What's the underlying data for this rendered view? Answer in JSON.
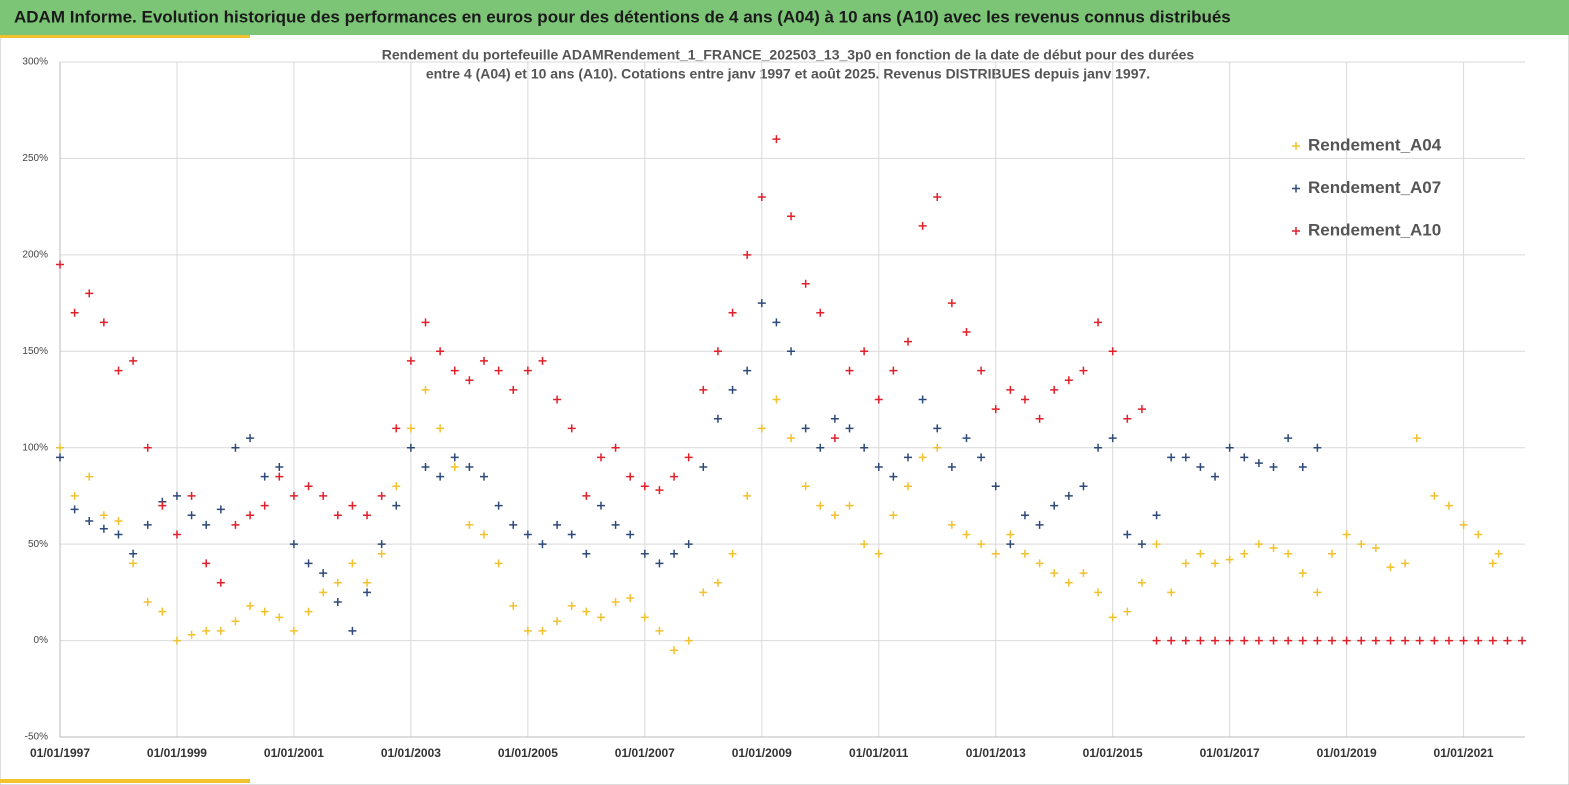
{
  "header": {
    "title": "ADAM Informe. Evolution historique des performances en euros pour des détentions de 4 ans (A04) à 10 ans (A10) avec les revenus connus distribués"
  },
  "chart_data": {
    "type": "scatter",
    "title_lines": [
      "Rendement du portefeuille ADAMRendement_1_FRANCE_202503_13_3p0  en fonction de la date de début pour des durées",
      "entre 4 (A04) et 10 ans (A10). Cotations entre janv 1997 et août 2025. Revenus DISTRIBUES depuis janv 1997."
    ],
    "xlim": [
      1997,
      2022.05
    ],
    "xticks": [
      {
        "value": 1997,
        "label": "01/01/1997"
      },
      {
        "value": 1999,
        "label": "01/01/1999"
      },
      {
        "value": 2001,
        "label": "01/01/2001"
      },
      {
        "value": 2003,
        "label": "01/01/2003"
      },
      {
        "value": 2005,
        "label": "01/01/2005"
      },
      {
        "value": 2007,
        "label": "01/01/2007"
      },
      {
        "value": 2009,
        "label": "01/01/2009"
      },
      {
        "value": 2011,
        "label": "01/01/2011"
      },
      {
        "value": 2013,
        "label": "01/01/2013"
      },
      {
        "value": 2015,
        "label": "01/01/2015"
      },
      {
        "value": 2017,
        "label": "01/01/2017"
      },
      {
        "value": 2019,
        "label": "01/01/2019"
      },
      {
        "value": 2021,
        "label": "01/01/2021"
      }
    ],
    "ylim": [
      -50,
      300
    ],
    "yticks": [
      {
        "value": -50,
        "label": "-50%"
      },
      {
        "value": 0,
        "label": "0%"
      },
      {
        "value": 50,
        "label": "50%"
      },
      {
        "value": 100,
        "label": "100%"
      },
      {
        "value": 150,
        "label": "150%"
      },
      {
        "value": 200,
        "label": "200%"
      },
      {
        "value": 250,
        "label": "250%"
      },
      {
        "value": 300,
        "label": "300%"
      }
    ],
    "grid": true,
    "legend": "upper right",
    "series": [
      {
        "name": "Rendement_A04",
        "color": "#f2c12e",
        "x": [
          1997,
          1997.25,
          1997.5,
          1997.75,
          1998,
          1998.25,
          1998.5,
          1998.75,
          1999,
          1999.25,
          1999.5,
          1999.75,
          2000,
          2000.25,
          2000.5,
          2000.75,
          2001,
          2001.25,
          2001.5,
          2001.75,
          2002,
          2002.25,
          2002.5,
          2002.75,
          2003,
          2003.25,
          2003.5,
          2003.75,
          2004,
          2004.25,
          2004.5,
          2004.75,
          2005,
          2005.25,
          2005.5,
          2005.75,
          2006,
          2006.25,
          2006.5,
          2006.75,
          2007,
          2007.25,
          2007.5,
          2007.75,
          2008,
          2008.25,
          2008.5,
          2008.75,
          2009,
          2009.25,
          2009.5,
          2009.75,
          2010,
          2010.25,
          2010.5,
          2010.75,
          2011,
          2011.25,
          2011.5,
          2011.75,
          2012,
          2012.25,
          2012.5,
          2012.75,
          2013,
          2013.25,
          2013.5,
          2013.75,
          2014,
          2014.25,
          2014.5,
          2014.75,
          2015,
          2015.25,
          2015.5,
          2015.75,
          2016,
          2016.25,
          2016.5,
          2016.75,
          2017,
          2017.25,
          2017.5,
          2017.75,
          2018,
          2018.25,
          2018.5,
          2018.75,
          2019,
          2019.25,
          2019.5,
          2019.75,
          2020,
          2020.2,
          2020.5,
          2020.75,
          2021,
          2021.25,
          2021.5,
          2021.6
        ],
        "values": [
          100,
          75,
          85,
          65,
          62,
          40,
          20,
          15,
          0,
          3,
          5,
          5,
          10,
          18,
          15,
          12,
          5,
          15,
          25,
          30,
          40,
          30,
          45,
          80,
          110,
          130,
          110,
          90,
          60,
          55,
          40,
          18,
          5,
          5,
          10,
          18,
          15,
          12,
          20,
          22,
          12,
          5,
          -5,
          0,
          25,
          30,
          45,
          75,
          110,
          125,
          105,
          80,
          70,
          65,
          70,
          50,
          45,
          65,
          80,
          95,
          100,
          60,
          55,
          50,
          45,
          55,
          45,
          40,
          35,
          30,
          35,
          25,
          12,
          15,
          30,
          50,
          25,
          40,
          45,
          40,
          42,
          45,
          50,
          48,
          45,
          35,
          25,
          45,
          55,
          50,
          48,
          38,
          40,
          105,
          75,
          70,
          60,
          55,
          40,
          45
        ]
      },
      {
        "name": "Rendement_A07",
        "color": "#2e4a7a",
        "x": [
          1997,
          1997.25,
          1997.5,
          1997.75,
          1998,
          1998.25,
          1998.5,
          1998.75,
          1999,
          1999.25,
          1999.5,
          1999.75,
          2000,
          2000.25,
          2000.5,
          2000.75,
          2001,
          2001.25,
          2001.5,
          2001.75,
          2002,
          2002.25,
          2002.5,
          2002.75,
          2003,
          2003.25,
          2003.5,
          2003.75,
          2004,
          2004.25,
          2004.5,
          2004.75,
          2005,
          2005.25,
          2005.5,
          2005.75,
          2006,
          2006.25,
          2006.5,
          2006.75,
          2007,
          2007.25,
          2007.5,
          2007.75,
          2008,
          2008.25,
          2008.5,
          2008.75,
          2009,
          2009.25,
          2009.5,
          2009.75,
          2010,
          2010.25,
          2010.5,
          2010.75,
          2011,
          2011.25,
          2011.5,
          2011.75,
          2012,
          2012.25,
          2012.5,
          2012.75,
          2013,
          2013.25,
          2013.5,
          2013.75,
          2014,
          2014.25,
          2014.5,
          2014.75,
          2015,
          2015.25,
          2015.5,
          2015.75,
          2016,
          2016.25,
          2016.5,
          2016.75,
          2017,
          2017.25,
          2017.5,
          2017.75,
          2018,
          2018.25,
          2018.5
        ],
        "values": [
          95,
          68,
          62,
          58,
          55,
          45,
          60,
          72,
          75,
          65,
          60,
          68,
          100,
          105,
          85,
          90,
          50,
          40,
          35,
          20,
          5,
          25,
          50,
          70,
          100,
          90,
          85,
          95,
          90,
          85,
          70,
          60,
          55,
          50,
          60,
          55,
          45,
          70,
          60,
          55,
          45,
          40,
          45,
          50,
          90,
          115,
          130,
          140,
          175,
          165,
          150,
          110,
          100,
          115,
          110,
          100,
          90,
          85,
          95,
          125,
          110,
          90,
          105,
          95,
          80,
          50,
          65,
          60,
          70,
          75,
          80,
          100,
          105,
          55,
          50,
          65,
          95,
          95,
          90,
          85,
          100,
          95,
          92,
          90,
          105,
          90,
          100
        ]
      },
      {
        "name": "Rendement_A10",
        "color": "#e0202a",
        "x": [
          1997,
          1997.25,
          1997.5,
          1997.75,
          1998,
          1998.25,
          1998.5,
          1998.75,
          1999,
          1999.25,
          1999.5,
          1999.75,
          2000,
          2000.25,
          2000.5,
          2000.75,
          2001,
          2001.25,
          2001.5,
          2001.75,
          2002,
          2002.25,
          2002.5,
          2002.75,
          2003,
          2003.25,
          2003.5,
          2003.75,
          2004,
          2004.25,
          2004.5,
          2004.75,
          2005,
          2005.25,
          2005.5,
          2005.75,
          2006,
          2006.25,
          2006.5,
          2006.75,
          2007,
          2007.25,
          2007.5,
          2007.75,
          2008,
          2008.25,
          2008.5,
          2008.75,
          2009,
          2009.25,
          2009.5,
          2009.75,
          2010,
          2010.25,
          2010.5,
          2010.75,
          2011,
          2011.25,
          2011.5,
          2011.75,
          2012,
          2012.25,
          2012.5,
          2012.75,
          2013,
          2013.25,
          2013.5,
          2013.75,
          2014,
          2014.25,
          2014.5,
          2014.75,
          2015,
          2015.25,
          2015.5,
          2015.75,
          2016,
          2016.25,
          2016.5,
          2016.75,
          2017,
          2017.25,
          2017.5,
          2017.75,
          2018,
          2018.25,
          2018.5,
          2018.75,
          2019,
          2019.25,
          2019.5,
          2019.75,
          2020,
          2020.25,
          2020.5,
          2020.75,
          2021,
          2021.25,
          2021.5,
          2021.75,
          2022
        ],
        "values": [
          195,
          170,
          180,
          165,
          140,
          145,
          100,
          70,
          55,
          75,
          40,
          30,
          60,
          65,
          70,
          85,
          75,
          80,
          75,
          65,
          70,
          65,
          75,
          110,
          145,
          165,
          150,
          140,
          135,
          145,
          140,
          130,
          140,
          145,
          125,
          110,
          75,
          95,
          100,
          85,
          80,
          78,
          85,
          95,
          130,
          150,
          170,
          200,
          230,
          260,
          220,
          185,
          170,
          105,
          140,
          150,
          125,
          140,
          155,
          215,
          230,
          175,
          160,
          140,
          120,
          130,
          125,
          115,
          130,
          135,
          140,
          165,
          150,
          115,
          120,
          0,
          0,
          0,
          0,
          0,
          0,
          0,
          0,
          0,
          0,
          0,
          0,
          0,
          0,
          0,
          0,
          0,
          0,
          0,
          0,
          0,
          0,
          0,
          0,
          0,
          0
        ]
      }
    ]
  }
}
